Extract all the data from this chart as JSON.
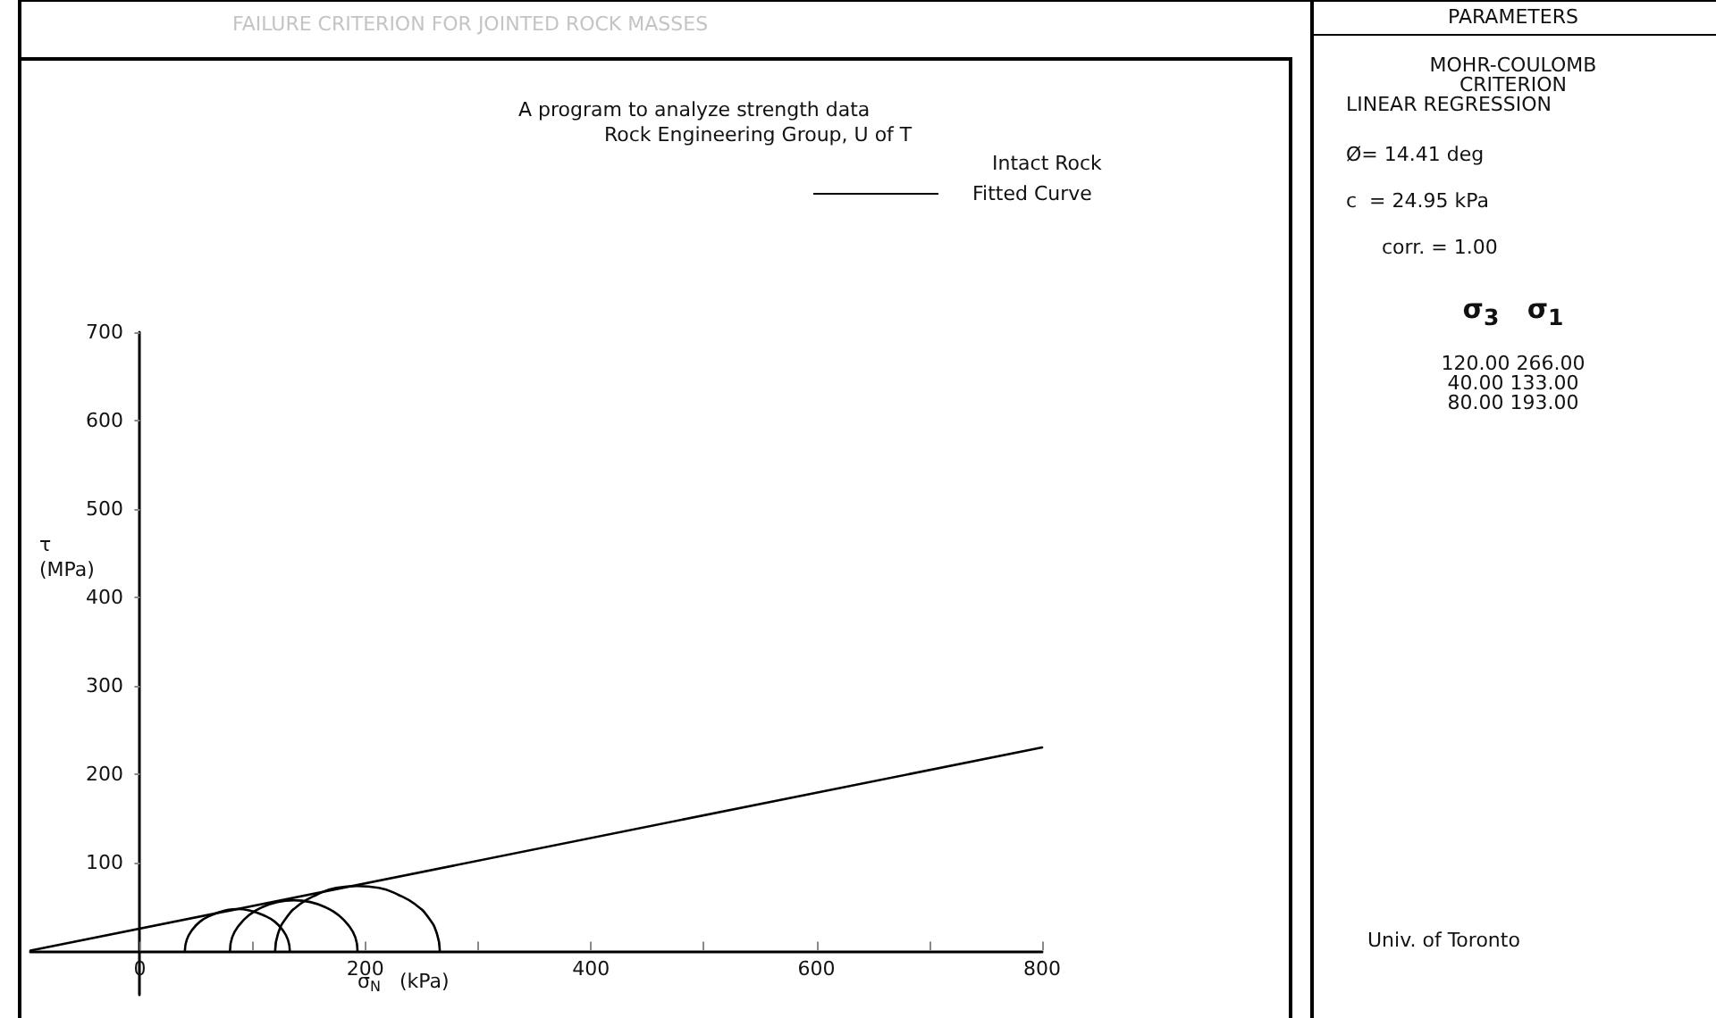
{
  "chart_data": {
    "type": "line",
    "title": "FAILURE CRITERION FOR JOINTED ROCK MASSES",
    "subtitle": "A program to analyze strength data",
    "xlabel": "σ$_{N}$   (kPa)",
    "ylabel": "τ\n(MPa)",
    "xlim": [
      -97,
      800
    ],
    "ylim": [
      -50,
      700
    ],
    "xticks": [
      0,
      {
        "value": 100,
        "label": null
      },
      200,
      {
        "value": 300,
        "label": null
      },
      400,
      {
        "value": 500,
        "label": null
      },
      600,
      {
        "value": 700,
        "label": null
      },
      800
    ],
    "yticks": [
      100,
      200,
      300,
      400,
      500,
      600,
      700
    ],
    "legend": "top right",
    "marker": "none",
    "line_style": "solid",
    "grid": false,
    "series": [
      {
        "name": "Fitted Curve",
        "color": "#000000",
        "x": [
          -97,
          800
        ],
        "values": [
          0,
          230
        ]
      },
      {
        "color": "#000000",
        "x": [
          133,
          131.4,
          126.8,
          119.4,
          109.8,
          98.5,
          86.5,
          74.5,
          63.2,
          53.6,
          46.2,
          41.6,
          40
        ],
        "values": [
          0,
          12,
          23,
          33,
          40,
          45,
          47,
          45,
          40,
          33,
          23,
          12,
          0
        ]
      },
      {
        "color": "#000000",
        "x": [
          193,
          191.1,
          185.4,
          176.4,
          164.8,
          151.1,
          136.5,
          121.9,
          108.2,
          96.6,
          87.6,
          81.9,
          80
        ],
        "values": [
          0,
          15,
          28,
          40,
          49,
          55,
          57,
          55,
          49,
          40,
          28,
          15,
          0
        ]
      },
      {
        "color": "#000000",
        "x": [
          266,
          263.5,
          256.2,
          244.6,
          229.5,
          211.9,
          193,
          174.1,
          156.5,
          141.4,
          129.8,
          122.5,
          120
        ],
        "values": [
          0,
          19,
          37,
          52,
          63,
          71,
          73,
          71,
          63,
          52,
          37,
          19,
          0
        ]
      }
    ],
    "annotations": [
      "Rock Engineering Group, U of T",
      "Intact Rock",
      "PARAMETERS",
      "MOHR-COULOMB",
      "CRITERION",
      "LINEAR REGRESSION",
      "Ø= 14.41 deg",
      "c  = 24.95 kPa",
      "corr. = 1.00",
      "σ$_{3}$   σ$_{1}$",
      "120.00 266.00",
      "40.00 133.00",
      "80.00 193.00",
      "Univ. of Toronto"
    ]
  }
}
